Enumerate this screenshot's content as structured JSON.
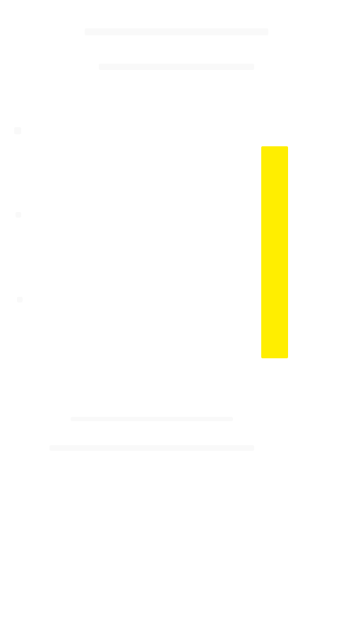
{
  "canvas": {
    "background_color": "#ffffff"
  },
  "elements": {
    "yellow_bar": {
      "color": "#ffee00"
    },
    "watermark_text": {
      "left": "",
      "right": "",
      "color": "#eeeeee"
    }
  }
}
